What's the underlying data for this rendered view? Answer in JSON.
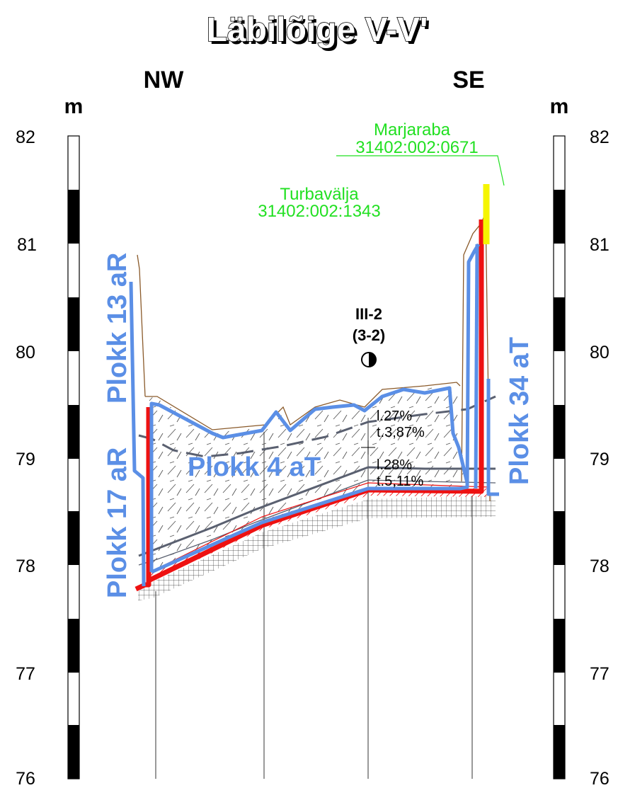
{
  "title": "Läbilõige V-V'",
  "directions": {
    "left": "NW",
    "right": "SE"
  },
  "scale": {
    "unit": "m",
    "ticks": [
      "82",
      "81",
      "80",
      "79",
      "78",
      "77",
      "76"
    ]
  },
  "parcels": [
    {
      "name": "Marjaraba",
      "code": "31402:002:0671"
    },
    {
      "name": "Turbavälja",
      "code": "31402:002:1343"
    }
  ],
  "plokk_labels": {
    "plokk_13": "Plokk 13 aR",
    "plokk_17": "Plokk 17 aR",
    "plokk_4": "Plokk 4 aT",
    "plokk_34": "Plokk 34 aT"
  },
  "borehole": {
    "id": "III-2",
    "sub": "(3-2)"
  },
  "layers": [
    {
      "l": "l.27%",
      "t": "t.3,87%"
    },
    {
      "l": "l.28%",
      "t": "t.5,11%"
    }
  ],
  "colors": {
    "plokk_line": "#5b8fe6",
    "boundary_red": "#ee1111",
    "parcel_text": "#22e022",
    "highlight_yellow": "#f5f500",
    "layer_grey": "#5a6070",
    "terrain_brown": "#8a5a2a"
  }
}
